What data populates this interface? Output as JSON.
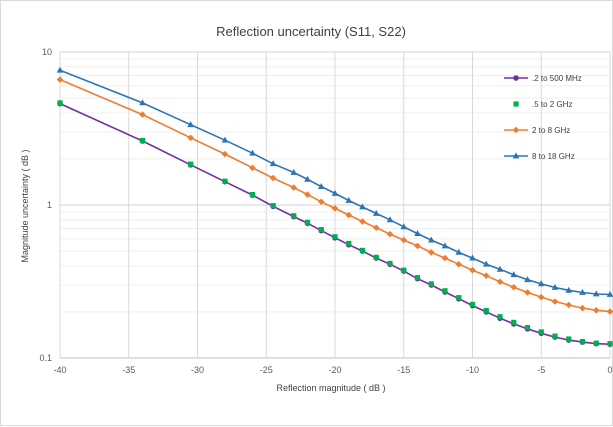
{
  "chart_data": {
    "type": "line",
    "title": "Reflection uncertainty (S11, S22)",
    "xlabel": "Reflection magnitude ( dB )",
    "ylabel": "Magnitude uncertainty  ( dB )",
    "xlim": [
      -40,
      0
    ],
    "ylim": [
      0.1,
      10
    ],
    "yscale": "log",
    "x_ticks": [
      -40,
      -35,
      -30,
      -25,
      -20,
      -15,
      -10,
      -5,
      0
    ],
    "y_tick_labels": [
      "0.1",
      "1",
      "10"
    ],
    "grid": true,
    "legend_position": "right",
    "series": [
      {
        "name": ".2 to 500 MHz",
        "color": "#7030a0",
        "marker": "circle",
        "x": [
          -40,
          -34,
          -30.5,
          -28,
          -26,
          -24.5,
          -23,
          -22,
          -21,
          -20,
          -19,
          -18,
          -17,
          -16,
          -15,
          -14,
          -13,
          -12,
          -11,
          -10,
          -9,
          -8,
          -7,
          -6,
          -5,
          -4,
          -3,
          -2,
          -1,
          0
        ],
        "values": [
          4.6,
          2.62,
          1.83,
          1.42,
          1.16,
          0.98,
          0.84,
          0.76,
          0.68,
          0.61,
          0.55,
          0.5,
          0.45,
          0.41,
          0.37,
          0.33,
          0.3,
          0.27,
          0.244,
          0.22,
          0.2,
          0.182,
          0.167,
          0.155,
          0.145,
          0.137,
          0.131,
          0.127,
          0.124,
          0.123
        ]
      },
      {
        "name": ".5 to 2 GHz",
        "color": "#00b050",
        "marker": "square",
        "x": [
          -40,
          -34,
          -30.5,
          -28,
          -26,
          -24.5,
          -23,
          -22,
          -21,
          -20,
          -19,
          -18,
          -17,
          -16,
          -15,
          -14,
          -13,
          -12,
          -11,
          -10,
          -9,
          -8,
          -7,
          -6,
          -5,
          -4,
          -3,
          -2,
          -1,
          0
        ],
        "values": [
          4.65,
          2.64,
          1.85,
          1.43,
          1.17,
          0.99,
          0.85,
          0.77,
          0.69,
          0.62,
          0.56,
          0.505,
          0.455,
          0.415,
          0.375,
          0.335,
          0.305,
          0.275,
          0.248,
          0.224,
          0.204,
          0.186,
          0.171,
          0.158,
          0.148,
          0.139,
          0.133,
          0.128,
          0.125,
          0.124
        ]
      },
      {
        "name": "2 to 8 GHz",
        "color": "#ed7d31",
        "marker": "diamond",
        "x": [
          -40,
          -34,
          -30.5,
          -28,
          -26,
          -24.5,
          -23,
          -22,
          -21,
          -20,
          -19,
          -18,
          -17,
          -16,
          -15,
          -14,
          -13,
          -12,
          -11,
          -10,
          -9,
          -8,
          -7,
          -6,
          -5,
          -4,
          -3,
          -2,
          -1,
          0
        ],
        "values": [
          6.6,
          3.9,
          2.75,
          2.15,
          1.75,
          1.5,
          1.3,
          1.17,
          1.05,
          0.95,
          0.86,
          0.78,
          0.71,
          0.645,
          0.59,
          0.54,
          0.49,
          0.45,
          0.41,
          0.375,
          0.345,
          0.315,
          0.29,
          0.268,
          0.25,
          0.234,
          0.222,
          0.212,
          0.205,
          0.201
        ]
      },
      {
        "name": "8 to 18 GHz",
        "color": "#2e75b6",
        "marker": "triangle",
        "x": [
          -40,
          -34,
          -30.5,
          -28,
          -26,
          -24.5,
          -23,
          -22,
          -21,
          -20,
          -19,
          -18,
          -17,
          -16,
          -15,
          -14,
          -13,
          -12,
          -11,
          -10,
          -9,
          -8,
          -7,
          -6,
          -5,
          -4,
          -3,
          -2,
          -1,
          0
        ],
        "values": [
          7.6,
          4.65,
          3.35,
          2.65,
          2.18,
          1.86,
          1.63,
          1.47,
          1.32,
          1.19,
          1.07,
          0.97,
          0.88,
          0.8,
          0.72,
          0.65,
          0.59,
          0.54,
          0.49,
          0.45,
          0.41,
          0.38,
          0.35,
          0.325,
          0.305,
          0.289,
          0.277,
          0.268,
          0.262,
          0.26
        ]
      }
    ]
  }
}
